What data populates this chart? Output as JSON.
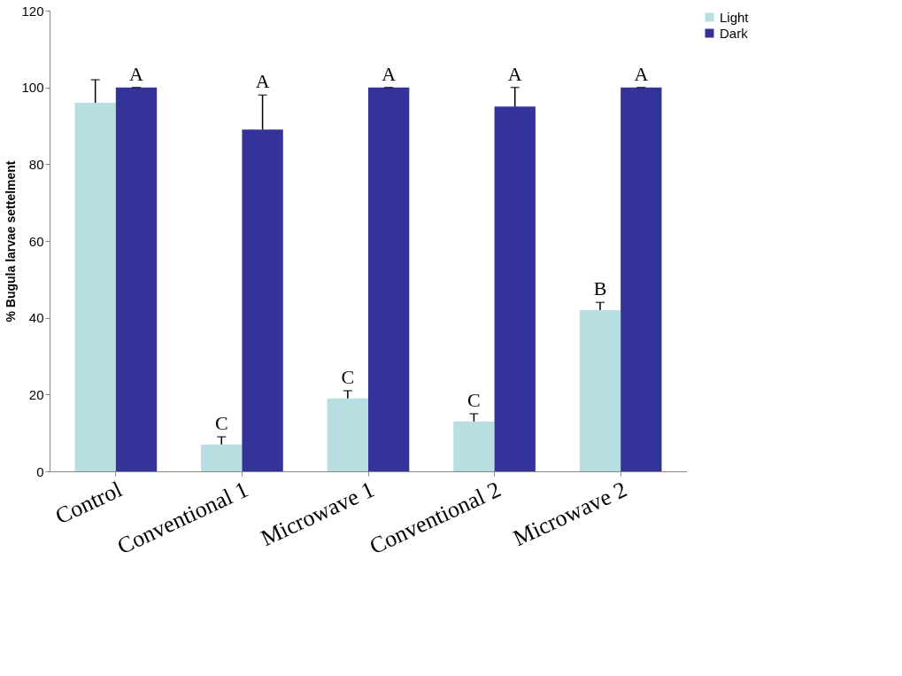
{
  "chart_data": {
    "type": "bar",
    "ylabel": "% Bugula larvae settelment",
    "categories": [
      "Control",
      "Conventional  1",
      "Microwave 1",
      "Conventional  2",
      "Microwave 2"
    ],
    "series": [
      {
        "name": "Light",
        "color": "#b7dfe1",
        "values": [
          96,
          7,
          19,
          13,
          42
        ],
        "errors": [
          [
            96,
            102
          ],
          [
            7,
            9
          ],
          [
            19,
            21
          ],
          [
            13,
            15
          ],
          [
            42,
            44
          ]
        ]
      },
      {
        "name": "Dark",
        "color": "#333399",
        "values": [
          100,
          89,
          100,
          95,
          100
        ],
        "errors": [
          [
            100,
            100
          ],
          [
            89,
            98
          ],
          [
            100,
            100
          ],
          [
            95,
            100
          ],
          [
            100,
            100
          ]
        ]
      }
    ],
    "ylim": [
      0,
      120
    ],
    "yticks": [
      0,
      20,
      40,
      60,
      80,
      100,
      120
    ],
    "grid": false,
    "legend": "right",
    "annotations": [
      {
        "text": "A",
        "x": "Control",
        "y": 100
      },
      {
        "text": "C",
        "x": "Conventional  1",
        "y": 7
      },
      {
        "text": "A",
        "x": "Conventional  1",
        "y": 89
      },
      {
        "text": "C",
        "x": "Microwave 1",
        "y": 19
      },
      {
        "text": "A",
        "x": "Microwave 1",
        "y": 100
      },
      {
        "text": "C",
        "x": "Conventional  2",
        "y": 13
      },
      {
        "text": "A",
        "x": "Conventional  2",
        "y": 95
      },
      {
        "text": "B",
        "x": "Microwave 2",
        "y": 42
      },
      {
        "text": "A",
        "x": "Microwave 2",
        "y": 100
      }
    ]
  }
}
